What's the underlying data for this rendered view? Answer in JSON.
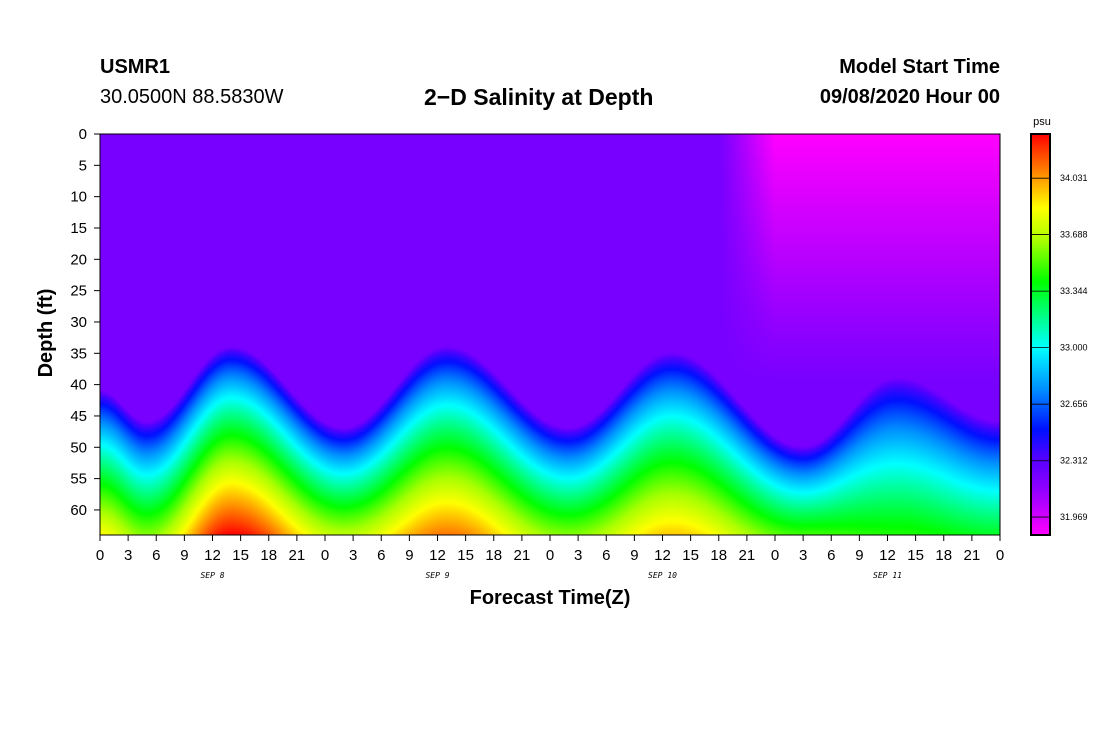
{
  "header": {
    "station_id": "USMR1",
    "coordinates": "30.0500N 88.5830W",
    "title": "2−D Salinity at Depth",
    "start_label": "Model Start Time",
    "start_value": "09/08/2020 Hour 00"
  },
  "chart_data": {
    "type": "heatmap",
    "title": "2−D Salinity at Depth",
    "xlabel": "Forecast Time(Z)",
    "ylabel": "Depth (ft)",
    "xlim_hours": [
      0,
      96
    ],
    "ylim_ft": [
      0,
      64
    ],
    "x_ticks": [
      "0",
      "3",
      "6",
      "9",
      "12",
      "15",
      "18",
      "21",
      "0",
      "3",
      "6",
      "9",
      "12",
      "15",
      "18",
      "21",
      "0",
      "3",
      "6",
      "9",
      "12",
      "15",
      "18",
      "21",
      "0",
      "3",
      "6",
      "9",
      "12",
      "15",
      "18",
      "21",
      "0"
    ],
    "day_labels": [
      {
        "text": "SEP 8",
        "hour": 12
      },
      {
        "text": "SEP 9",
        "hour": 36
      },
      {
        "text": "SEP 10",
        "hour": 60
      },
      {
        "text": "SEP 11",
        "hour": 84
      }
    ],
    "y_ticks": [
      "0",
      "5",
      "10",
      "15",
      "20",
      "25",
      "30",
      "35",
      "40",
      "45",
      "50",
      "55",
      "60"
    ],
    "colorbar": {
      "unit": "psu",
      "min": 31.86,
      "max": 34.3,
      "tick_values": [
        "34.031",
        "33.688",
        "33.344",
        "33.000",
        "32.656",
        "32.312",
        "31.969"
      ],
      "stops": [
        {
          "value": 31.86,
          "color": "#ff00ff"
        },
        {
          "value": 32.14,
          "color": "#9000ff"
        },
        {
          "value": 32.31,
          "color": "#5a00ff"
        },
        {
          "value": 32.5,
          "color": "#0010ff"
        },
        {
          "value": 32.75,
          "color": "#0090ff"
        },
        {
          "value": 33.0,
          "color": "#00ffff"
        },
        {
          "value": 33.2,
          "color": "#00ff80"
        },
        {
          "value": 33.4,
          "color": "#00ff00"
        },
        {
          "value": 33.65,
          "color": "#a8ff00"
        },
        {
          "value": 33.85,
          "color": "#ffff00"
        },
        {
          "value": 34.05,
          "color": "#ff9000"
        },
        {
          "value": 34.3,
          "color": "#ff0000"
        }
      ]
    },
    "background_salinity": 32.22,
    "surface_fresh_region": {
      "start_hour": 66,
      "full_hour": 72,
      "salinity": 31.86
    },
    "halocline_depth_ft": [
      {
        "hour": 0,
        "depth": 51
      },
      {
        "hour": 5,
        "depth": 56
      },
      {
        "hour": 14,
        "depth": 44
      },
      {
        "hour": 26,
        "depth": 57
      },
      {
        "hour": 37,
        "depth": 44
      },
      {
        "hour": 50,
        "depth": 57
      },
      {
        "hour": 61,
        "depth": 45
      },
      {
        "hour": 75,
        "depth": 60
      },
      {
        "hour": 85,
        "depth": 49
      },
      {
        "hour": 96,
        "depth": 56
      }
    ],
    "bottom_peak_salinity": [
      {
        "hour": 0,
        "value": 33.85
      },
      {
        "hour": 5,
        "value": 33.6
      },
      {
        "hour": 14,
        "value": 34.3
      },
      {
        "hour": 26,
        "value": 33.7
      },
      {
        "hour": 37,
        "value": 34.1
      },
      {
        "hour": 50,
        "value": 33.6
      },
      {
        "hour": 61,
        "value": 33.95
      },
      {
        "hour": 75,
        "value": 33.5
      },
      {
        "hour": 85,
        "value": 33.45
      },
      {
        "hour": 96,
        "value": 33.35
      }
    ]
  }
}
